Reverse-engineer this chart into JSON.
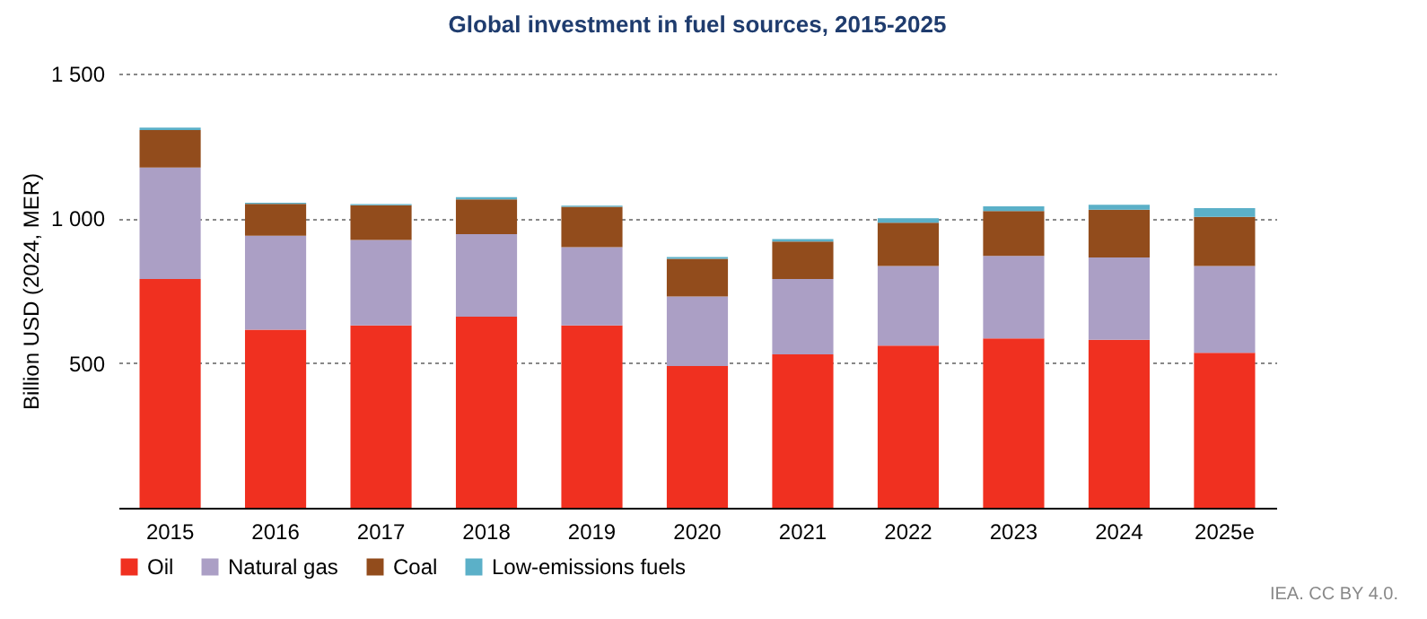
{
  "chart_data": {
    "type": "bar",
    "title": "Global investment in fuel sources, 2015-2025",
    "ylabel": "Billion USD (2024, MER)",
    "categories": [
      "2015",
      "2016",
      "2017",
      "2018",
      "2019",
      "2020",
      "2021",
      "2022",
      "2023",
      "2024",
      "2025e"
    ],
    "stacked": true,
    "series": [
      {
        "name": "Oil",
        "color": "#f03020",
        "values": [
          790,
          615,
          630,
          660,
          630,
          490,
          530,
          560,
          585,
          580,
          535
        ]
      },
      {
        "name": "Natural gas",
        "color": "#ab9fc5",
        "values": [
          385,
          325,
          295,
          285,
          270,
          240,
          260,
          275,
          285,
          285,
          300
        ]
      },
      {
        "name": "Coal",
        "color": "#924c1c",
        "values": [
          130,
          110,
          120,
          120,
          140,
          130,
          130,
          150,
          155,
          165,
          170
        ]
      },
      {
        "name": "Low-emissions fuels",
        "color": "#5bb0c8",
        "values": [
          8,
          4,
          4,
          8,
          4,
          6,
          8,
          15,
          16,
          17,
          30
        ]
      }
    ],
    "ylim": [
      0,
      1500
    ],
    "yticks": [
      {
        "value": 0,
        "label": null
      },
      500,
      {
        "value": 1000,
        "label": "1 000"
      },
      {
        "value": 1500,
        "label": "1 500"
      }
    ],
    "grid": "y",
    "legend": "bottom",
    "annotations": [
      "IEA. CC BY 4.0."
    ]
  }
}
